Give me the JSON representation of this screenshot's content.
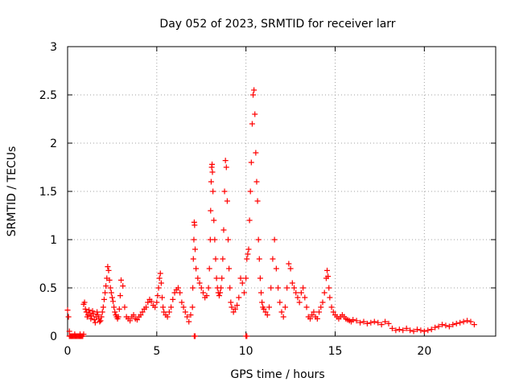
{
  "chart_data": {
    "type": "scatter",
    "title": "Day 052 of 2023, SRMTID for receiver larr",
    "xlabel": "GPS time / hours",
    "ylabel": "SRMTID / TECUs",
    "xlim": [
      0,
      24
    ],
    "ylim": [
      0,
      3
    ],
    "xticks": [
      0,
      5,
      10,
      15,
      20
    ],
    "yticks": [
      0,
      0.5,
      1,
      1.5,
      2,
      2.5,
      3
    ],
    "ytick_labels": [
      "0",
      "0.5",
      "1",
      "1.5",
      "2",
      "2.5",
      "3"
    ],
    "grid": true,
    "marker": "+",
    "series_color": "#ff0000",
    "series": [
      {
        "name": "SRMTID",
        "marker": "+",
        "x": [
          0.0,
          0.05,
          0.1,
          0.15,
          0.2,
          0.25,
          0.3,
          0.35,
          0.4,
          0.45,
          0.5,
          0.55,
          0.6,
          0.65,
          0.7,
          0.75,
          0.8,
          0.85,
          0.9,
          0.95,
          1.0,
          1.05,
          1.1,
          1.15,
          1.2,
          1.25,
          1.3,
          1.35,
          1.4,
          1.45,
          1.5,
          1.55,
          1.6,
          1.65,
          1.7,
          1.75,
          1.8,
          1.85,
          1.9,
          1.95,
          2.0,
          2.05,
          2.1,
          2.15,
          2.2,
          2.25,
          2.3,
          2.35,
          2.4,
          2.45,
          2.5,
          2.55,
          2.6,
          2.65,
          2.7,
          2.75,
          2.8,
          2.85,
          2.9,
          2.95,
          3.0,
          3.1,
          3.2,
          3.3,
          3.4,
          3.5,
          3.6,
          3.7,
          3.8,
          3.9,
          4.0,
          4.1,
          4.2,
          4.3,
          4.4,
          4.5,
          4.6,
          4.7,
          4.8,
          4.9,
          5.0,
          5.05,
          5.1,
          5.15,
          5.2,
          5.25,
          5.3,
          5.35,
          5.4,
          5.5,
          5.6,
          5.7,
          5.8,
          5.9,
          6.0,
          6.1,
          6.2,
          6.3,
          6.4,
          6.5,
          6.6,
          6.7,
          6.8,
          6.9,
          7.0,
          7.02,
          7.05,
          7.08,
          7.1,
          7.12,
          7.15,
          7.2,
          7.3,
          7.4,
          7.5,
          7.6,
          7.7,
          7.8,
          7.9,
          7.95,
          8.0,
          8.02,
          8.05,
          8.08,
          8.1,
          8.12,
          8.15,
          8.2,
          8.25,
          8.3,
          8.35,
          8.4,
          8.45,
          8.5,
          8.55,
          8.6,
          8.65,
          8.7,
          8.75,
          8.8,
          8.85,
          8.9,
          8.95,
          9.0,
          9.05,
          9.1,
          9.15,
          9.2,
          9.3,
          9.4,
          9.5,
          9.6,
          9.7,
          9.8,
          9.9,
          10.0,
          10.05,
          10.1,
          10.15,
          10.2,
          10.25,
          10.3,
          10.35,
          10.4,
          10.45,
          10.5,
          10.55,
          10.6,
          10.65,
          10.7,
          10.75,
          10.8,
          10.85,
          10.9,
          10.95,
          11.0,
          11.1,
          11.2,
          11.3,
          11.4,
          11.5,
          11.6,
          11.7,
          11.8,
          11.9,
          12.0,
          12.1,
          12.2,
          12.3,
          12.4,
          12.5,
          12.6,
          12.7,
          12.8,
          12.9,
          13.0,
          13.1,
          13.2,
          13.3,
          13.4,
          13.5,
          13.6,
          13.7,
          13.8,
          13.9,
          14.0,
          14.1,
          14.2,
          14.3,
          14.4,
          14.5,
          14.55,
          14.6,
          14.65,
          14.7,
          14.8,
          14.9,
          15.0,
          15.1,
          15.2,
          15.3,
          15.4,
          15.5,
          15.6,
          15.7,
          15.8,
          15.9,
          16.0,
          16.2,
          16.4,
          16.6,
          16.8,
          17.0,
          17.2,
          17.4,
          17.6,
          17.8,
          18.0,
          18.2,
          18.4,
          18.6,
          18.8,
          19.0,
          19.2,
          19.4,
          19.6,
          19.8,
          20.0,
          20.2,
          20.4,
          20.6,
          20.8,
          21.0,
          21.2,
          21.4,
          21.6,
          21.8,
          22.0,
          22.2,
          22.4,
          22.6,
          22.8,
          7.1,
          7.15,
          10.0,
          10.05,
          0.1,
          0.4,
          0.7,
          0.9
        ],
        "y": [
          0.27,
          0.2,
          0.0,
          0.0,
          0.0,
          0.0,
          0.0,
          0.0,
          0.0,
          0.0,
          0.0,
          0.0,
          0.0,
          0.0,
          0.0,
          0.0,
          0.0,
          0.0,
          0.33,
          0.35,
          0.28,
          0.25,
          0.2,
          0.22,
          0.27,
          0.24,
          0.18,
          0.21,
          0.26,
          0.23,
          0.17,
          0.14,
          0.2,
          0.25,
          0.22,
          0.18,
          0.15,
          0.16,
          0.2,
          0.25,
          0.3,
          0.38,
          0.45,
          0.52,
          0.6,
          0.72,
          0.68,
          0.58,
          0.5,
          0.45,
          0.4,
          0.36,
          0.3,
          0.25,
          0.22,
          0.2,
          0.18,
          0.2,
          0.28,
          0.42,
          0.58,
          0.52,
          0.3,
          0.2,
          0.18,
          0.16,
          0.2,
          0.22,
          0.18,
          0.17,
          0.2,
          0.22,
          0.25,
          0.28,
          0.3,
          0.35,
          0.38,
          0.36,
          0.32,
          0.3,
          0.35,
          0.42,
          0.5,
          0.6,
          0.65,
          0.55,
          0.4,
          0.3,
          0.25,
          0.22,
          0.2,
          0.25,
          0.3,
          0.38,
          0.45,
          0.48,
          0.5,
          0.45,
          0.35,
          0.3,
          0.25,
          0.2,
          0.15,
          0.22,
          0.3,
          0.5,
          0.8,
          1.0,
          1.18,
          1.15,
          0.9,
          0.7,
          0.6,
          0.55,
          0.5,
          0.45,
          0.4,
          0.42,
          0.5,
          0.7,
          1.0,
          1.3,
          1.6,
          1.75,
          1.78,
          1.7,
          1.5,
          1.2,
          1.0,
          0.8,
          0.6,
          0.5,
          0.45,
          0.42,
          0.45,
          0.5,
          0.6,
          0.8,
          1.1,
          1.5,
          1.82,
          1.75,
          1.4,
          1.0,
          0.7,
          0.5,
          0.35,
          0.3,
          0.25,
          0.28,
          0.32,
          0.4,
          0.6,
          0.55,
          0.45,
          0.6,
          0.8,
          0.85,
          0.9,
          1.2,
          1.5,
          1.8,
          2.2,
          2.5,
          2.55,
          2.3,
          1.9,
          1.6,
          1.4,
          1.0,
          0.8,
          0.6,
          0.45,
          0.35,
          0.3,
          0.28,
          0.25,
          0.22,
          0.3,
          0.5,
          0.8,
          1.0,
          0.7,
          0.5,
          0.35,
          0.25,
          0.2,
          0.3,
          0.5,
          0.75,
          0.7,
          0.55,
          0.5,
          0.45,
          0.4,
          0.35,
          0.45,
          0.5,
          0.4,
          0.3,
          0.2,
          0.18,
          0.22,
          0.25,
          0.2,
          0.18,
          0.25,
          0.3,
          0.35,
          0.45,
          0.6,
          0.68,
          0.62,
          0.5,
          0.4,
          0.3,
          0.25,
          0.22,
          0.2,
          0.18,
          0.2,
          0.22,
          0.2,
          0.18,
          0.17,
          0.16,
          0.15,
          0.17,
          0.16,
          0.14,
          0.15,
          0.13,
          0.14,
          0.15,
          0.14,
          0.12,
          0.15,
          0.13,
          0.08,
          0.06,
          0.07,
          0.06,
          0.08,
          0.06,
          0.05,
          0.07,
          0.06,
          0.05,
          0.06,
          0.07,
          0.09,
          0.1,
          0.12,
          0.11,
          0.1,
          0.12,
          0.13,
          0.14,
          0.15,
          0.16,
          0.15,
          0.12,
          0.0,
          0.0,
          0.0,
          0.0,
          0.05,
          0.02,
          0.02,
          0.02
        ]
      }
    ]
  }
}
